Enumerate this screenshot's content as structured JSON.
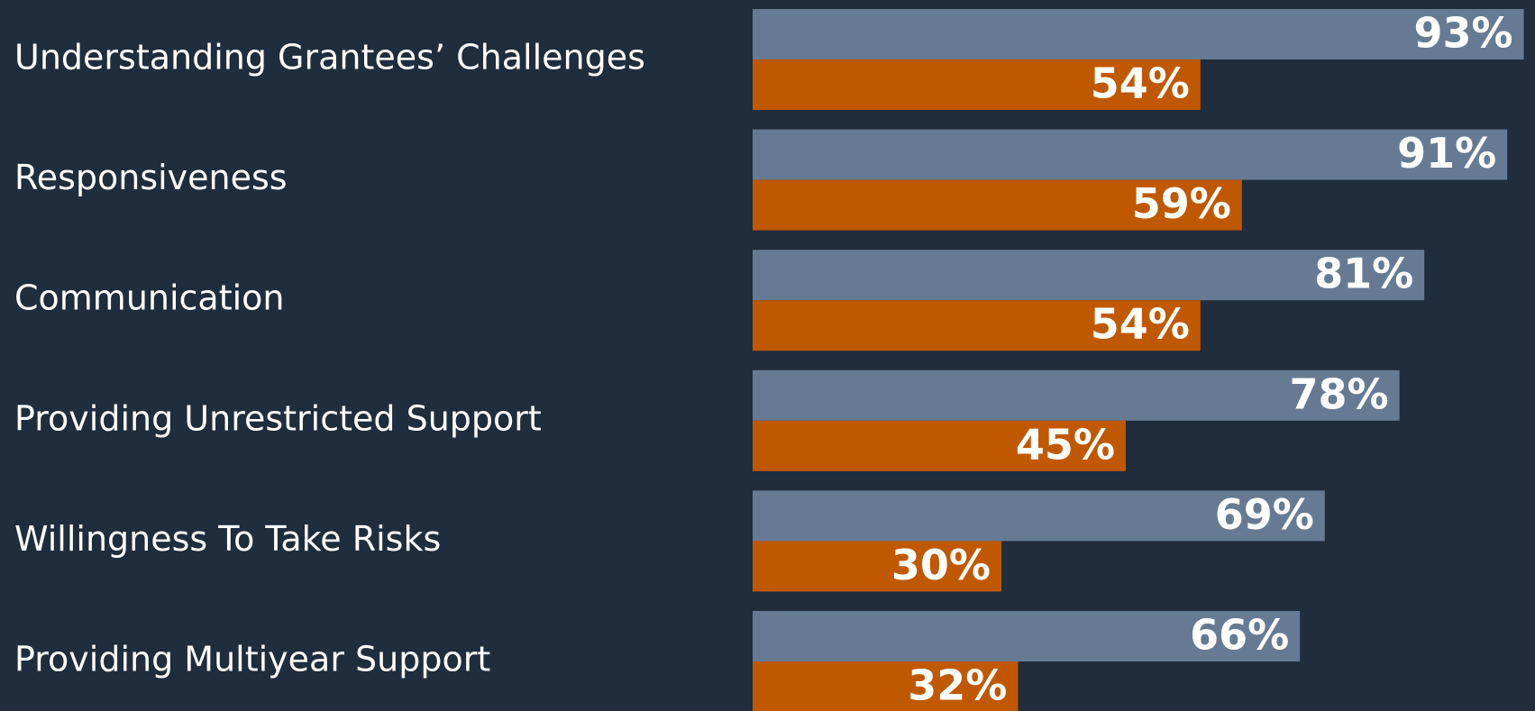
{
  "chart_data": {
    "type": "bar",
    "orientation": "horizontal",
    "categories": [
      "Understanding Grantees’ Challenges",
      "Responsiveness",
      "Communication",
      "Providing Unrestricted Support",
      "Willingness To Take Risks",
      "Providing Multiyear Support"
    ],
    "series": [
      {
        "color": "#667b93",
        "values": [
          93,
          91,
          81,
          78,
          69,
          66
        ],
        "value_labels": [
          "93%",
          "91%",
          "81%",
          "78%",
          "69%",
          "66%"
        ]
      },
      {
        "color": "#c05800",
        "values": [
          54,
          59,
          54,
          45,
          30,
          32
        ],
        "value_labels": [
          "54%",
          "59%",
          "54%",
          "45%",
          "30%",
          "32%"
        ]
      }
    ]
  }
}
